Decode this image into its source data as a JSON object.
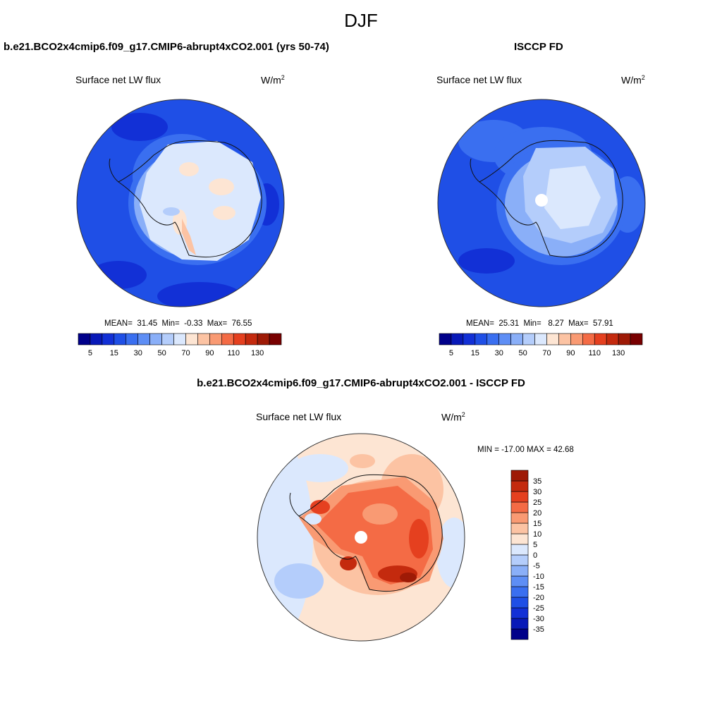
{
  "season": "DJF",
  "panels": [
    {
      "title": "b.e21.BCO2x4cmip6.f09_g17.CMIP6-abrupt4xCO2.001 (yrs 50-74)",
      "left_label": "Surface net LW flux",
      "units": "W/m",
      "units_sup": "2",
      "stats": {
        "mean_label": "MEAN=",
        "mean": "31.45",
        "min_label": "Min=",
        "min": "-0.33",
        "max_label": "Max=",
        "max": "76.55"
      }
    },
    {
      "title": "ISCCP FD",
      "left_label": "Surface net LW flux",
      "units": "W/m",
      "units_sup": "2",
      "stats": {
        "mean_label": "MEAN=",
        "mean": "25.31",
        "min_label": "Min=",
        "min": "8.27",
        "max_label": "Max=",
        "max": "57.91"
      }
    },
    {
      "title": "b.e21.BCO2x4cmip6.f09_g17.CMIP6-abrupt4xCO2.001 - ISCCP FD",
      "left_label": "Surface net LW flux",
      "units": "W/m",
      "units_sup": "2",
      "stats": {
        "text": "MIN = -17.00 MAX =  42.68"
      }
    }
  ],
  "chart_data": [
    {
      "type": "heatmap",
      "projection": "south-polar-stereographic",
      "title": "b.e21.BCO2x4cmip6.f09_g17.CMIP6-abrupt4xCO2.001 (yrs 50-74)",
      "variable": "Surface net LW flux",
      "units": "W/m2",
      "colorbar": {
        "orientation": "horizontal",
        "levels": [
          5,
          10,
          15,
          20,
          30,
          40,
          50,
          60,
          70,
          80,
          90,
          100,
          110,
          120,
          130
        ],
        "tick_labels": [
          "5",
          "15",
          "30",
          "50",
          "70",
          "90",
          "110",
          "130"
        ],
        "colors": [
          "#00008a",
          "#0819b8",
          "#1230d6",
          "#1f4fe6",
          "#3a6ff0",
          "#5e8ef5",
          "#8aaff8",
          "#b4cdfb",
          "#dbe8fd",
          "#fde5d3",
          "#fcc3a3",
          "#f99a73",
          "#f46b45",
          "#e5401f",
          "#c42a0e",
          "#9e1a06",
          "#780000"
        ]
      },
      "stats": {
        "mean": 31.45,
        "min": -0.33,
        "max": 76.55
      }
    },
    {
      "type": "heatmap",
      "projection": "south-polar-stereographic",
      "title": "ISCCP FD",
      "variable": "Surface net LW flux",
      "units": "W/m2",
      "colorbar": {
        "orientation": "horizontal",
        "levels": [
          5,
          10,
          15,
          20,
          30,
          40,
          50,
          60,
          70,
          80,
          90,
          100,
          110,
          120,
          130
        ],
        "tick_labels": [
          "5",
          "15",
          "30",
          "50",
          "70",
          "90",
          "110",
          "130"
        ],
        "colors": [
          "#00008a",
          "#0819b8",
          "#1230d6",
          "#1f4fe6",
          "#3a6ff0",
          "#5e8ef5",
          "#8aaff8",
          "#b4cdfb",
          "#dbe8fd",
          "#fde5d3",
          "#fcc3a3",
          "#f99a73",
          "#f46b45",
          "#e5401f",
          "#c42a0e",
          "#9e1a06",
          "#780000"
        ]
      },
      "stats": {
        "mean": 25.31,
        "min": 8.27,
        "max": 57.91
      }
    },
    {
      "type": "heatmap",
      "projection": "south-polar-stereographic",
      "title": "b.e21.BCO2x4cmip6.f09_g17.CMIP6-abrupt4xCO2.001 - ISCCP FD",
      "variable": "Surface net LW flux",
      "units": "W/m2",
      "colorbar": {
        "orientation": "vertical",
        "levels": [
          -35,
          -30,
          -25,
          -20,
          -15,
          -10,
          -5,
          0,
          5,
          10,
          15,
          20,
          25,
          30,
          35
        ],
        "tick_labels": [
          "35",
          "30",
          "25",
          "20",
          "15",
          "10",
          "5",
          "0",
          "-5",
          "-10",
          "-15",
          "-20",
          "-25",
          "-30",
          "-35"
        ],
        "colors": [
          "#00008a",
          "#0819b8",
          "#1230d6",
          "#1f4fe6",
          "#3a6ff0",
          "#5e8ef5",
          "#8aaff8",
          "#b4cdfb",
          "#dbe8fd",
          "#fde5d3",
          "#fcc3a3",
          "#f99a73",
          "#f46b45",
          "#e5401f",
          "#c42a0e",
          "#9e1a06"
        ]
      },
      "stats": {
        "min": -17.0,
        "max": 42.68
      }
    }
  ]
}
